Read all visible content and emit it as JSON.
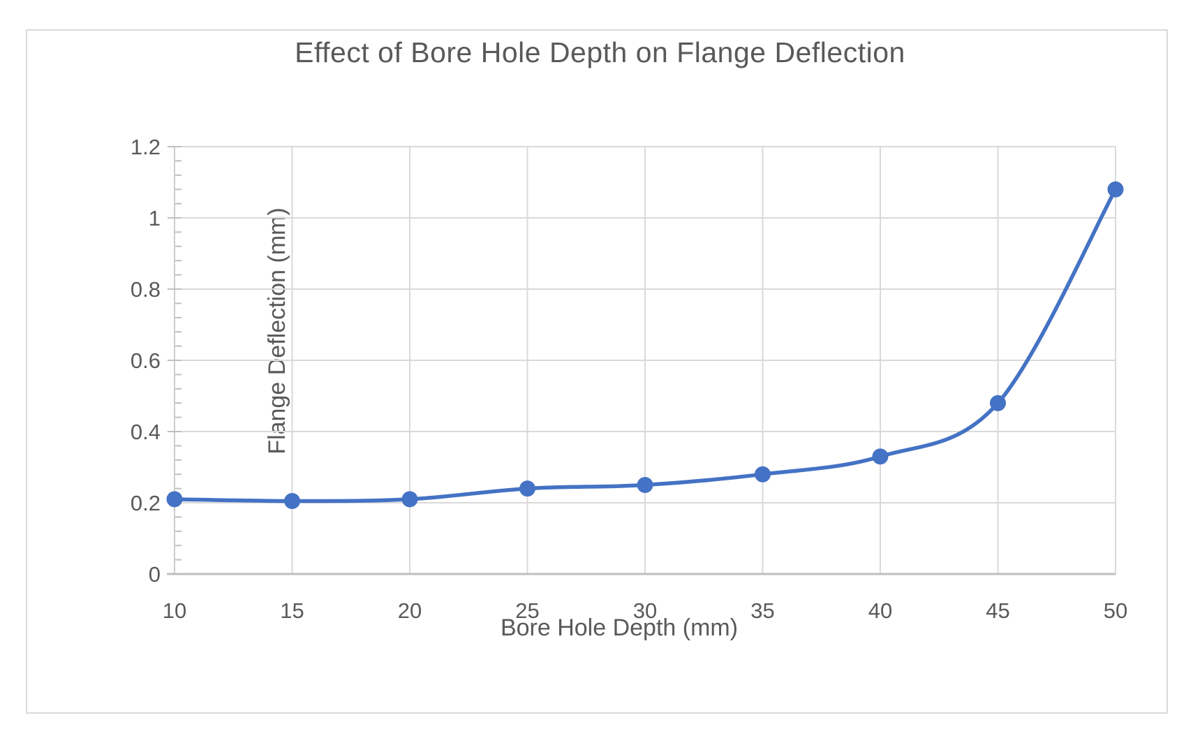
{
  "chart_data": {
    "type": "line",
    "title": "Effect of Bore Hole Depth on Flange Deflection",
    "xlabel": "Bore Hole Depth (mm)",
    "ylabel": "Flange Deflection (mm)",
    "x": [
      10,
      15,
      20,
      25,
      30,
      35,
      40,
      45,
      50
    ],
    "series": [
      {
        "name": "Flange Deflection",
        "values": [
          0.21,
          0.205,
          0.21,
          0.24,
          0.25,
          0.28,
          0.33,
          0.48,
          1.08
        ]
      }
    ],
    "xlim": [
      10,
      50
    ],
    "ylim": [
      0,
      1.2
    ],
    "x_tick_labels": [
      "10",
      "15",
      "20",
      "25",
      "30",
      "35",
      "40",
      "45",
      "50"
    ],
    "y_tick_values": [
      0,
      0.2,
      0.4,
      0.6,
      0.8,
      1.0,
      1.2
    ],
    "y_tick_labels": [
      "0",
      "0.2",
      "0.4",
      "0.6",
      "0.8",
      "1",
      "1.2"
    ],
    "y_minor_tick_step": 0.04,
    "grid": true,
    "legend": false,
    "smooth_line": true,
    "marker": "circle",
    "colors": {
      "line": "#4472c4",
      "marker": "#4472c4",
      "gridline": "#d9d9d9",
      "x_axis_line": "#bfbfbf",
      "y_axis_line": "#cccccc",
      "tick_mark": "#bfbfbf",
      "text": "#595959",
      "chart_border": "#d9d9d9",
      "background": "#ffffff"
    }
  }
}
